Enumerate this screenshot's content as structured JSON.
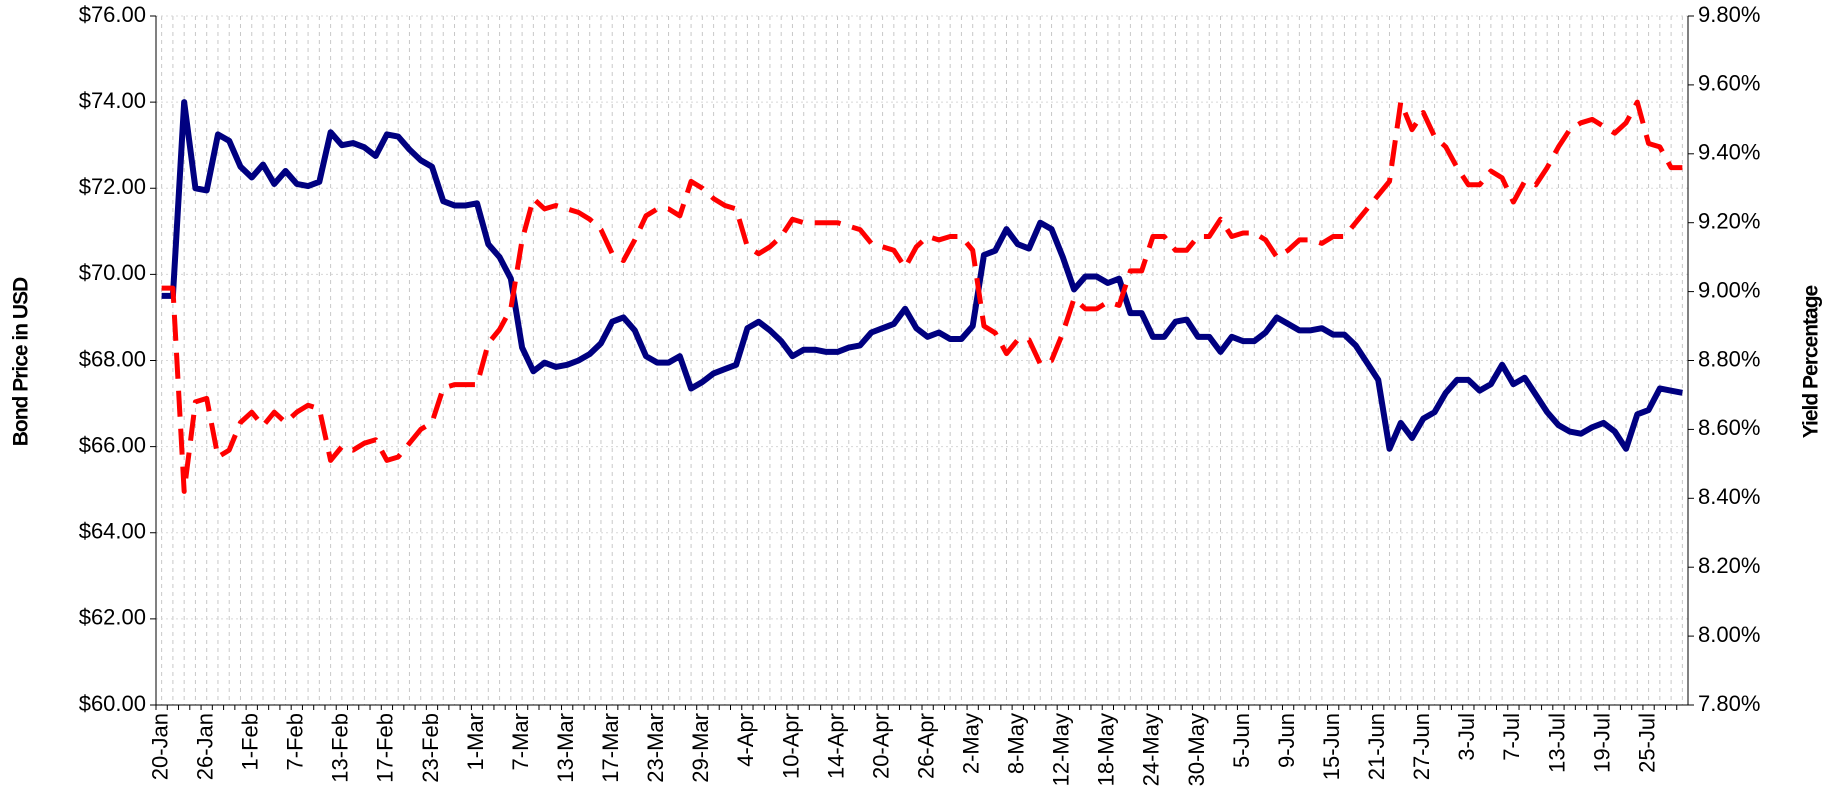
{
  "chart_data": {
    "type": "line",
    "ylabel": "Bond Price in USD",
    "y2label": "Yield Percentage",
    "categories": [
      "20-Jan",
      null,
      null,
      null,
      "26-Jan",
      null,
      null,
      null,
      "1-Feb",
      null,
      null,
      null,
      "7-Feb",
      null,
      null,
      null,
      "13-Feb",
      null,
      null,
      null,
      "17-Feb",
      null,
      null,
      null,
      "23-Feb",
      null,
      null,
      null,
      "1-Mar",
      null,
      null,
      null,
      "7-Mar",
      null,
      null,
      null,
      "13-Mar",
      null,
      null,
      null,
      "17-Mar",
      null,
      null,
      null,
      "23-Mar",
      null,
      null,
      null,
      "29-Mar",
      null,
      null,
      null,
      "4-Apr",
      null,
      null,
      null,
      "10-Apr",
      null,
      null,
      null,
      "14-Apr",
      null,
      null,
      null,
      "20-Apr",
      null,
      null,
      null,
      "26-Apr",
      null,
      null,
      null,
      "2-May",
      null,
      null,
      null,
      "8-May",
      null,
      null,
      null,
      "12-May",
      null,
      null,
      null,
      "18-May",
      null,
      null,
      null,
      "24-May",
      null,
      null,
      null,
      "30-May",
      null,
      null,
      null,
      "5-Jun",
      null,
      null,
      null,
      "9-Jun",
      null,
      null,
      null,
      "15-Jun",
      null,
      null,
      null,
      "21-Jun",
      null,
      null,
      null,
      "27-Jun",
      null,
      null,
      null,
      "3-Jul",
      null,
      null,
      null,
      "7-Jul",
      null,
      null,
      null,
      "13-Jul",
      null,
      null,
      null,
      "19-Jul",
      null,
      null,
      null,
      "25-Jul",
      null,
      null,
      null
    ],
    "series": [
      {
        "color": "#000080",
        "style": "solid",
        "axis": "y",
        "values": [
          69.5,
          69.5,
          74.0,
          72.0,
          71.95,
          73.25,
          73.1,
          72.5,
          72.25,
          72.55,
          72.1,
          72.4,
          72.1,
          72.05,
          72.15,
          73.3,
          73.0,
          73.05,
          72.95,
          72.75,
          73.25,
          73.2,
          72.9,
          72.65,
          72.5,
          71.7,
          71.6,
          71.6,
          71.65,
          70.7,
          70.4,
          69.9,
          68.3,
          67.75,
          67.95,
          67.85,
          67.9,
          68.0,
          68.15,
          68.4,
          68.9,
          69.0,
          68.7,
          68.1,
          67.95,
          67.95,
          68.1,
          67.35,
          67.5,
          67.7,
          67.8,
          67.9,
          68.75,
          68.9,
          68.7,
          68.45,
          68.1,
          68.25,
          68.25,
          68.2,
          68.2,
          68.3,
          68.35,
          68.65,
          68.75,
          68.85,
          69.2,
          68.75,
          68.55,
          68.65,
          68.5,
          68.5,
          68.8,
          70.45,
          70.55,
          71.05,
          70.7,
          70.6,
          71.2,
          71.05,
          70.4,
          69.65,
          69.95,
          69.95,
          69.8,
          69.9,
          69.1,
          69.1,
          68.55,
          68.55,
          68.9,
          68.95,
          68.55,
          68.55,
          68.2,
          68.55,
          68.45,
          68.45,
          68.65,
          69.0,
          68.85,
          68.7,
          68.7,
          68.75,
          68.6,
          68.6,
          68.35,
          67.95,
          67.55,
          65.95,
          66.55,
          66.2,
          66.65,
          66.8,
          67.25,
          67.55,
          67.55,
          67.3,
          67.45,
          67.9,
          67.45,
          67.6,
          67.2,
          66.8,
          66.5,
          66.35,
          66.3,
          66.45,
          66.55,
          66.35,
          65.95,
          66.75,
          66.85,
          67.35,
          67.3,
          67.25
        ]
      },
      {
        "color": "#ff0000",
        "style": "dashed",
        "axis": "y2",
        "values": [
          9.01,
          9.01,
          8.42,
          8.68,
          8.69,
          8.52,
          8.54,
          8.62,
          8.65,
          8.61,
          8.65,
          8.62,
          8.65,
          8.67,
          8.66,
          8.51,
          8.55,
          8.54,
          8.56,
          8.57,
          8.51,
          8.52,
          8.56,
          8.6,
          8.62,
          8.72,
          8.73,
          8.73,
          8.73,
          8.85,
          8.89,
          8.95,
          9.15,
          9.27,
          9.24,
          9.25,
          9.24,
          9.23,
          9.21,
          9.18,
          9.11,
          9.09,
          9.15,
          9.22,
          9.24,
          9.24,
          9.22,
          9.32,
          9.3,
          9.27,
          9.25,
          9.24,
          9.13,
          9.11,
          9.13,
          9.16,
          9.21,
          9.2,
          9.2,
          9.2,
          9.2,
          9.19,
          9.18,
          9.14,
          9.13,
          9.12,
          9.07,
          9.13,
          9.16,
          9.15,
          9.16,
          9.16,
          9.12,
          8.9,
          8.88,
          8.82,
          8.86,
          8.86,
          8.79,
          8.8,
          8.88,
          8.98,
          8.95,
          8.95,
          8.97,
          8.96,
          9.06,
          9.06,
          9.16,
          9.16,
          9.12,
          9.12,
          9.16,
          9.16,
          9.21,
          9.16,
          9.17,
          9.17,
          9.15,
          9.1,
          9.12,
          9.15,
          9.15,
          9.14,
          9.16,
          9.16,
          9.2,
          9.24,
          9.28,
          9.32,
          9.55,
          9.47,
          9.52,
          9.45,
          9.42,
          9.36,
          9.31,
          9.31,
          9.35,
          9.33,
          9.26,
          9.32,
          9.31,
          9.36,
          9.42,
          9.47,
          9.49,
          9.5,
          9.48,
          9.46,
          9.49,
          9.55,
          9.43,
          9.42,
          9.36,
          9.36
        ]
      }
    ],
    "ylim": [
      60,
      76
    ],
    "yticks": [
      {
        "value": 60,
        "label": "$60.00"
      },
      {
        "value": 62,
        "label": "$62.00"
      },
      {
        "value": 64,
        "label": "$64.00"
      },
      {
        "value": 66,
        "label": "$66.00"
      },
      {
        "value": 68,
        "label": "$68.00"
      },
      {
        "value": 70,
        "label": "$70.00"
      },
      {
        "value": 72,
        "label": "$72.00"
      },
      {
        "value": 74,
        "label": "$74.00"
      },
      {
        "value": 76,
        "label": "$76.00"
      }
    ],
    "y2lim": [
      7.8,
      9.8
    ],
    "y2ticks": [
      {
        "value": 7.8,
        "label": "7.80%"
      },
      {
        "value": 8.0,
        "label": "8.00%"
      },
      {
        "value": 8.2,
        "label": "8.20%"
      },
      {
        "value": 8.4,
        "label": "8.40%"
      },
      {
        "value": 8.6,
        "label": "8.60%"
      },
      {
        "value": 8.8,
        "label": "8.80%"
      },
      {
        "value": 9.0,
        "label": "9.00%"
      },
      {
        "value": 9.2,
        "label": "9.20%"
      },
      {
        "value": 9.4,
        "label": "9.40%"
      },
      {
        "value": 9.6,
        "label": "9.60%"
      },
      {
        "value": 9.8,
        "label": "9.80%"
      }
    ],
    "grid": true
  }
}
